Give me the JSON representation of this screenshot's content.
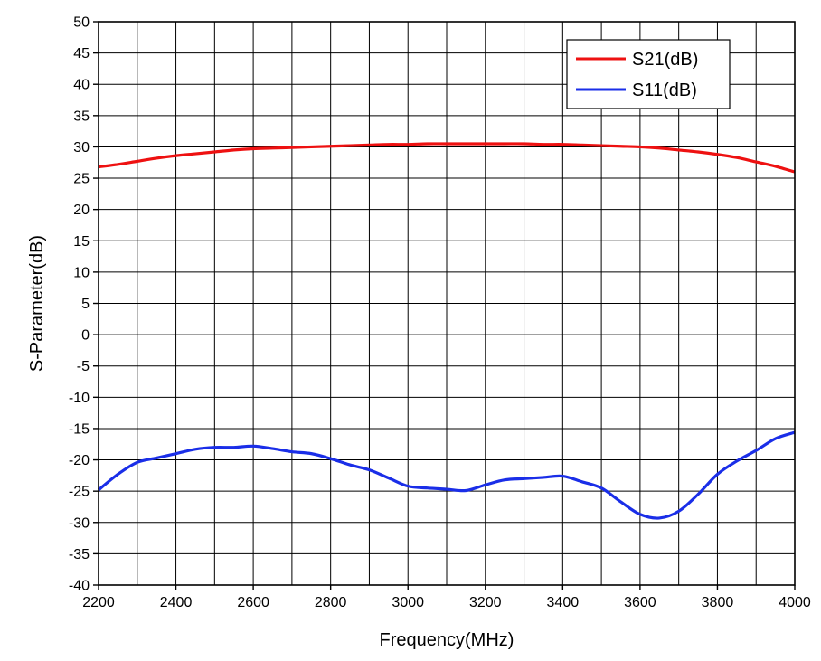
{
  "chart_data": {
    "type": "line",
    "title": "",
    "xlabel": "Frequency(MHz)",
    "ylabel": "S-Parameter(dB)",
    "xlim": [
      2200,
      4000
    ],
    "ylim": [
      -40,
      50
    ],
    "x_ticks": [
      2200,
      2400,
      2600,
      2800,
      3000,
      3200,
      3400,
      3600,
      3800,
      4000
    ],
    "x_tick_labels": [
      "2200",
      "2400",
      "2600",
      "2800",
      "3000",
      "3200",
      "3400",
      "3600",
      "3800",
      "4000"
    ],
    "y_ticks": [
      -40,
      -35,
      -30,
      -25,
      -20,
      -15,
      -10,
      -5,
      0,
      5,
      10,
      15,
      20,
      25,
      30,
      35,
      40,
      45,
      50
    ],
    "y_tick_labels": [
      "-40",
      "-35",
      "-30",
      "-25",
      "-20",
      "-15",
      "-10",
      "-5",
      "0",
      "5",
      "10",
      "15",
      "20",
      "25",
      "30",
      "35",
      "40",
      "45",
      "50"
    ],
    "x_minor_step": 100,
    "y_minor_step": 5,
    "grid": true,
    "legend_position": "top-right",
    "series": [
      {
        "name": "S21(dB)",
        "color": "#ee1111",
        "x": [
          2200,
          2250,
          2300,
          2350,
          2400,
          2450,
          2500,
          2550,
          2600,
          2650,
          2700,
          2750,
          2800,
          2850,
          2900,
          2950,
          3000,
          3050,
          3100,
          3150,
          3200,
          3250,
          3300,
          3350,
          3400,
          3450,
          3500,
          3550,
          3600,
          3650,
          3700,
          3750,
          3800,
          3850,
          3900,
          3950,
          4000
        ],
        "y": [
          26.8,
          27.2,
          27.7,
          28.2,
          28.6,
          28.9,
          29.2,
          29.5,
          29.7,
          29.8,
          29.9,
          30.0,
          30.1,
          30.2,
          30.3,
          30.4,
          30.4,
          30.5,
          30.5,
          30.5,
          30.5,
          30.5,
          30.5,
          30.4,
          30.4,
          30.3,
          30.2,
          30.1,
          30.0,
          29.8,
          29.5,
          29.2,
          28.8,
          28.3,
          27.6,
          26.9,
          26.0
        ]
      },
      {
        "name": "S11(dB)",
        "color": "#1a2ee8",
        "x": [
          2200,
          2250,
          2300,
          2350,
          2400,
          2450,
          2500,
          2550,
          2600,
          2650,
          2700,
          2750,
          2800,
          2850,
          2900,
          2950,
          3000,
          3050,
          3100,
          3150,
          3200,
          3250,
          3300,
          3350,
          3400,
          3450,
          3500,
          3550,
          3600,
          3650,
          3700,
          3750,
          3800,
          3850,
          3900,
          3950,
          4000
        ],
        "y": [
          -24.8,
          -22.3,
          -20.4,
          -19.7,
          -19.0,
          -18.3,
          -18.0,
          -18.0,
          -17.8,
          -18.2,
          -18.7,
          -19.0,
          -19.8,
          -20.8,
          -21.6,
          -22.9,
          -24.2,
          -24.5,
          -24.7,
          -24.9,
          -24.0,
          -23.2,
          -23.0,
          -22.8,
          -22.6,
          -23.5,
          -24.5,
          -26.7,
          -28.7,
          -29.3,
          -28.2,
          -25.5,
          -22.3,
          -20.2,
          -18.5,
          -16.6,
          -15.6
        ]
      }
    ]
  }
}
